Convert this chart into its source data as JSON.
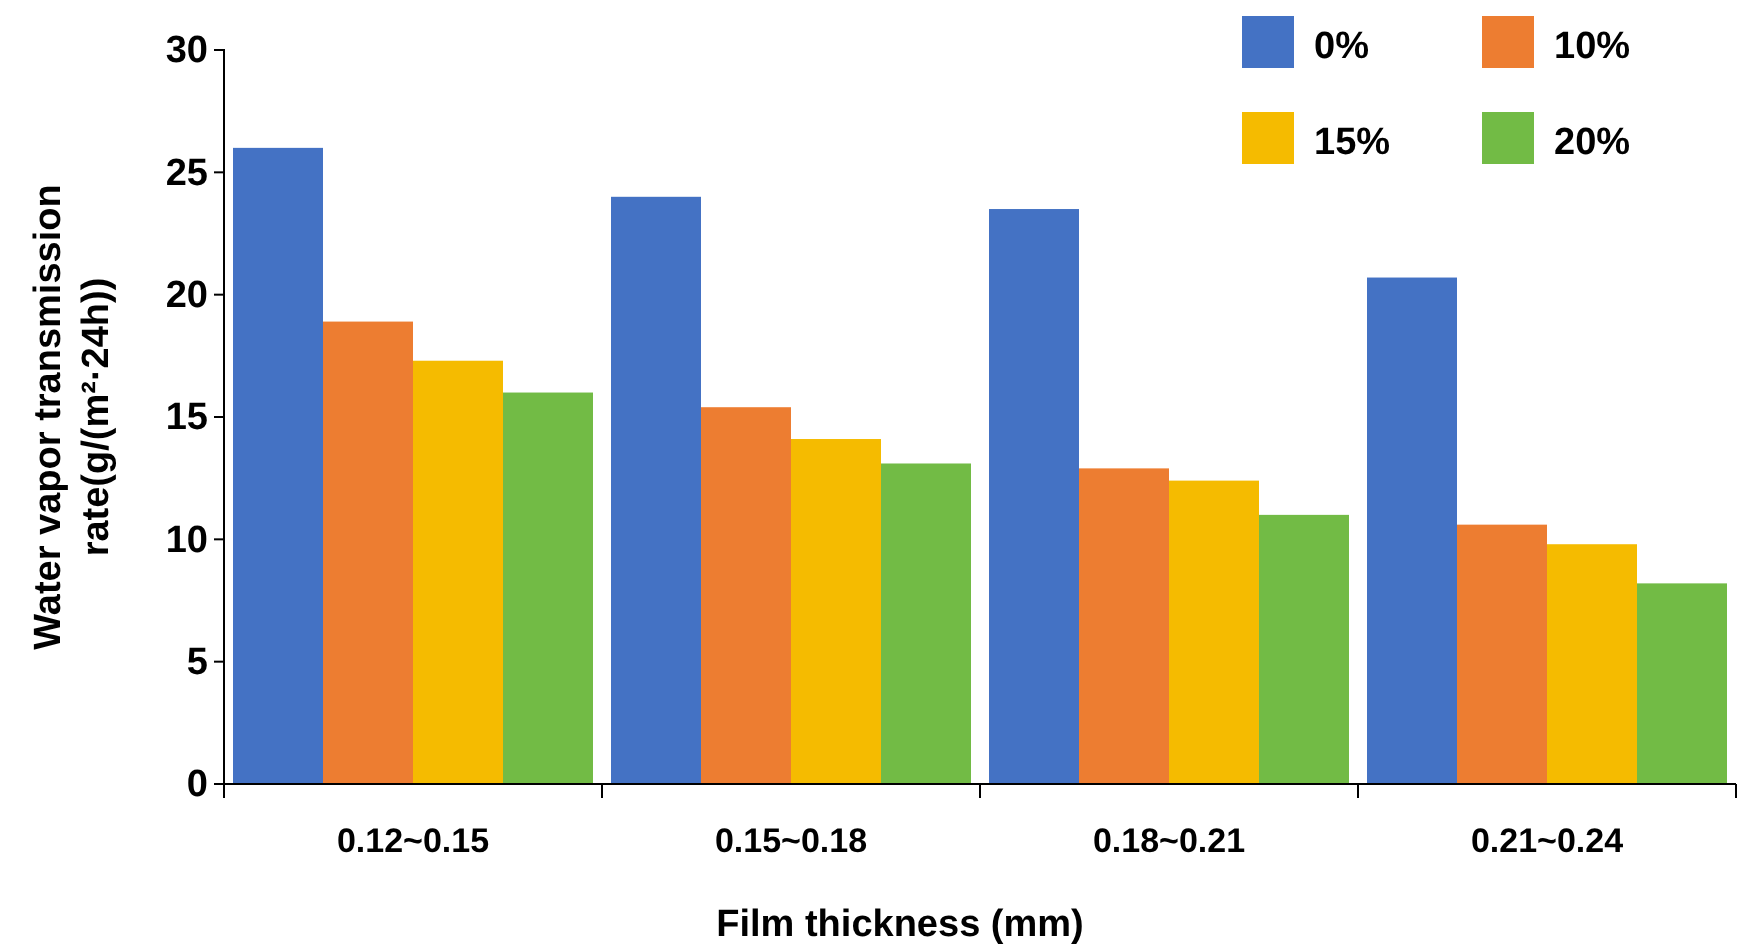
{
  "chart_data": {
    "type": "bar",
    "xlabel": "Film thickness (mm)",
    "ylabel": "Water vapor transmission rate(g/(m²·24h))",
    "categories": [
      "0.12~0.15",
      "0.15~0.18",
      "0.18~0.21",
      "0.21~0.24"
    ],
    "series": [
      {
        "name": "0%",
        "color": "#4472c4",
        "values": [
          26.0,
          24.0,
          23.5,
          20.7
        ]
      },
      {
        "name": "10%",
        "color": "#ed7d31",
        "values": [
          18.9,
          15.4,
          12.9,
          10.6
        ]
      },
      {
        "name": "15%",
        "color": "#f5bb00",
        "values": [
          17.3,
          14.1,
          12.4,
          9.8
        ]
      },
      {
        "name": "20%",
        "color": "#72bb45",
        "values": [
          16.0,
          13.1,
          11.0,
          8.2
        ]
      }
    ],
    "ylim": [
      0,
      30
    ],
    "yticks": [
      0,
      5,
      10,
      15,
      20,
      25,
      30
    ],
    "grid": false,
    "legend": "top right"
  }
}
